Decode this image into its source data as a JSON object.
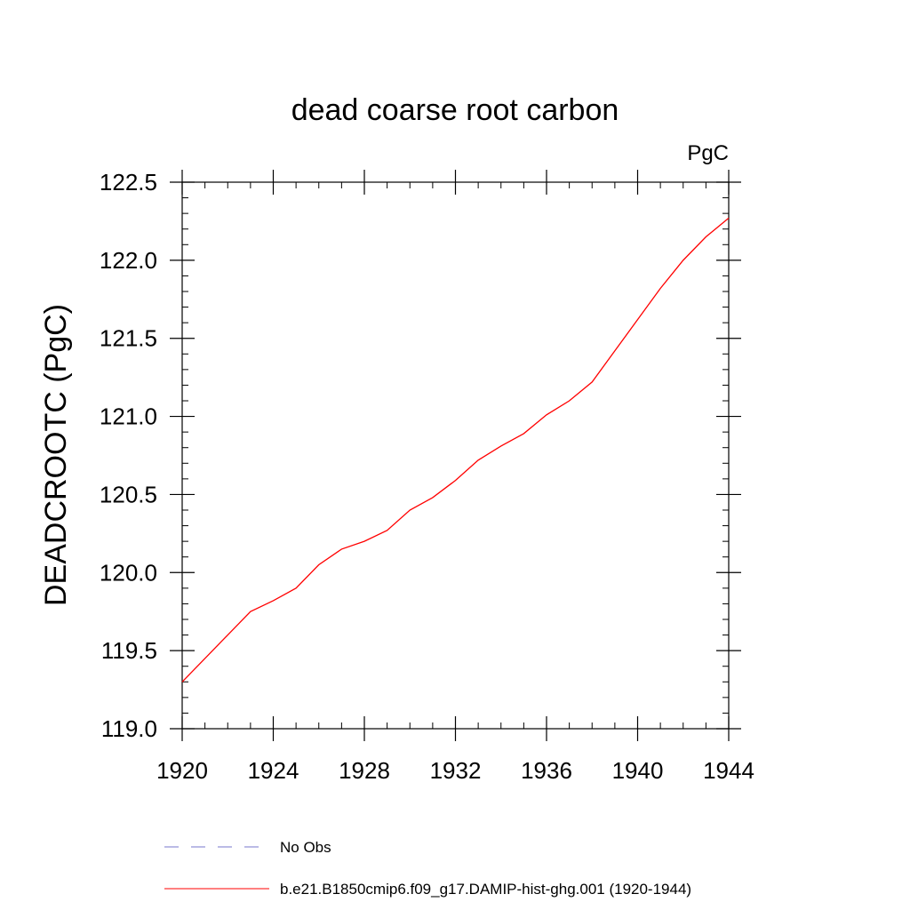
{
  "chart_data": {
    "type": "line",
    "title": "dead coarse root carbon",
    "units_label": "PgC",
    "ylabel": "DEADCROOTC  (PgC)",
    "xlabel": "",
    "xlim": [
      1920,
      1944
    ],
    "ylim": [
      119.0,
      122.5
    ],
    "x_ticks": [
      1920,
      1924,
      1928,
      1932,
      1936,
      1940,
      1944
    ],
    "y_ticks": [
      "119.0",
      "119.5",
      "120.0",
      "120.5",
      "121.0",
      "121.5",
      "122.0",
      "122.5"
    ],
    "grid": false,
    "series": [
      {
        "name": "b.e21.B1850cmip6.f09_g17.DAMIP-hist-ghg.001 (1920-1944)",
        "color": "#ff0000",
        "style": "solid",
        "x": [
          1920,
          1921,
          1922,
          1923,
          1924,
          1925,
          1926,
          1927,
          1928,
          1929,
          1930,
          1931,
          1932,
          1933,
          1934,
          1935,
          1936,
          1937,
          1938,
          1939,
          1940,
          1941,
          1942,
          1943,
          1944
        ],
        "y": [
          119.3,
          119.45,
          119.6,
          119.75,
          119.82,
          119.9,
          120.05,
          120.15,
          120.2,
          120.27,
          120.4,
          120.48,
          120.59,
          120.72,
          120.81,
          120.89,
          121.01,
          121.1,
          121.22,
          121.42,
          121.62,
          121.82,
          122.0,
          122.15,
          122.27
        ]
      }
    ],
    "legend": {
      "placement": "bottom",
      "entries": [
        {
          "label": "No Obs",
          "color": "#7777cc",
          "style": "dashed"
        },
        {
          "label": "b.e21.B1850cmip6.f09_g17.DAMIP-hist-ghg.001 (1920-1944)",
          "color": "#ff0000",
          "style": "solid"
        }
      ]
    }
  }
}
